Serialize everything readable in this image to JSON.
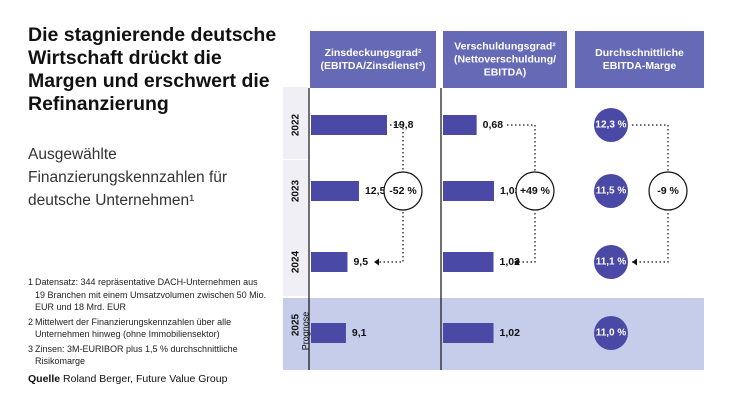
{
  "heading": {
    "title": "Die stagnierende deutsche Wirtschaft drückt die Margen und erschwert die Refinanzierung",
    "subtitle": "Ausgewählte Finanzierungskennzahlen für deutsche Unternehmen¹"
  },
  "footnotes": [
    {
      "num": "1",
      "text": "Datensatz: 344 repräsentative DACH-Unternehmen aus 19 Branchen mit einem Umsatzvolumen zwischen 50 Mio. EUR und 18 Mrd. EUR"
    },
    {
      "num": "2",
      "text": "Mittelwert der Finanzierungskennzahlen über alle Unternehmen hinweg (ohne Immobiliensektor)"
    },
    {
      "num": "3",
      "text": "Zinsen: 3M-EURIBOR plus 1,5 % durchschnittliche Risikomarge"
    }
  ],
  "source": {
    "label": "Quelle",
    "text": "Roland Berger, Future Value Group"
  },
  "colors": {
    "accent": "#4a4aa6",
    "header_bg": "#6569b6",
    "forecast_bg": "#c5cdea",
    "row_label_bg": "#efeff5",
    "text": "#111111"
  },
  "chart_data": {
    "type": "bar",
    "categories": [
      "2022",
      "2023",
      "2024",
      "2025"
    ],
    "forecast_label": "Prognose",
    "series": [
      {
        "name": "Zinsdeckungsgrad² (EBITDA/Zinsdienst³)",
        "header": [
          "Zinsdeckungsgrad²",
          "(EBITDA/Zinsdienst³)"
        ],
        "values": [
          19.8,
          12.5,
          9.5,
          9.1
        ],
        "labels": [
          "19,8",
          "12,5",
          "9,5",
          "9,1"
        ],
        "change": "-52 %"
      },
      {
        "name": "Verschuldungsgrad² (Nettoverschuldung/EBITDA)",
        "header": [
          "Verschuldungsgrad²",
          "(Nettoverschuldung/",
          "EBITDA)"
        ],
        "values": [
          0.68,
          1.03,
          1.02,
          1.02
        ],
        "labels": [
          "0,68",
          "1,03",
          "1,02",
          "1,02"
        ],
        "change": "+49 %"
      },
      {
        "name": "Durchschnittliche EBITDA-Marge",
        "header": [
          "Durchschnittliche",
          "EBITDA-Marge"
        ],
        "values": [
          12.3,
          11.5,
          11.1,
          11.0
        ],
        "labels": [
          "12,3 %",
          "11,5 %",
          "11,1 %",
          "11,0 %"
        ],
        "change": "-9 %"
      }
    ]
  }
}
